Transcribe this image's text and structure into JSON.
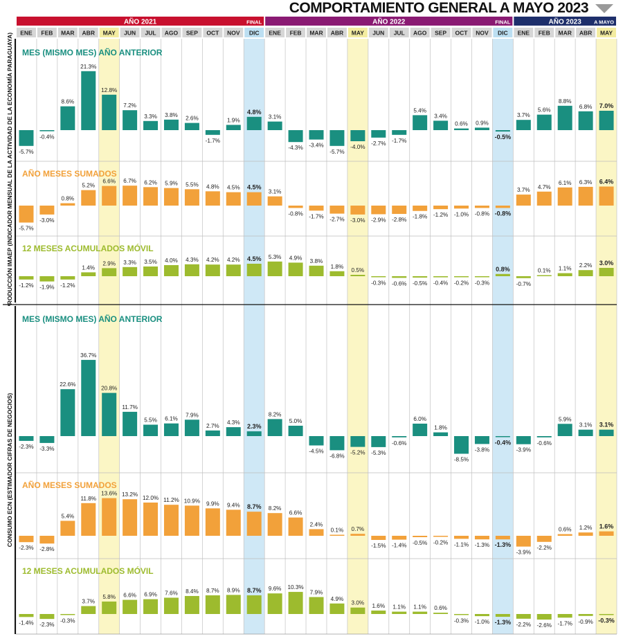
{
  "title": "COMPORTAMIENTO GENERAL A MAYO 2023",
  "colors": {
    "teal": "#1a8f80",
    "orange": "#f2a13a",
    "green": "#9dbb2e",
    "red": "#c8102e",
    "purple": "#8a1a73",
    "navy": "#1e2f6b",
    "highlight_blue": "#cfe8f6",
    "highlight_yellow": "#fbf6c5"
  },
  "years": [
    {
      "label": "AÑO 2021",
      "tag": "FINAL"
    },
    {
      "label": "AÑO 2022",
      "tag": "FINAL"
    },
    {
      "label": "AÑO 2023",
      "tag": "A MAYO"
    }
  ],
  "months": [
    "ENE",
    "FEB",
    "MAR",
    "ABR",
    "MAY",
    "JUN",
    "JUL",
    "AGO",
    "SEP",
    "OCT",
    "NOV",
    "DIC",
    "ENE",
    "FEB",
    "MAR",
    "ABR",
    "MAY",
    "JUN",
    "JUL",
    "AGO",
    "SEP",
    "OCT",
    "NOV",
    "DIC",
    "ENE",
    "FEB",
    "MAR",
    "ABR",
    "MAY"
  ],
  "section_labels": [
    "PRODUCCIÓN IMAEP (INDICADOR MENSUAL DE LA ACTIVIDAD DE LA ECONOMÍA PARAGUAYA)",
    "CONSUMO ECN (ESTIMADOR CIFRAS DE NEGOCIOS)"
  ],
  "chart_data": [
    {
      "type": "bar",
      "section": "PRODUCCIÓN IMAEP",
      "title": "MES (MISMO MES) AÑO ANTERIOR",
      "unit": "%",
      "values": [
        -5.7,
        -0.4,
        8.6,
        21.3,
        12.8,
        7.2,
        3.3,
        3.8,
        2.6,
        -1.7,
        1.9,
        4.8,
        3.1,
        -4.3,
        -3.4,
        -5.7,
        -4.0,
        -2.7,
        -1.7,
        5.4,
        3.4,
        0.6,
        0.9,
        -0.5,
        3.7,
        5.6,
        8.8,
        6.8,
        7.0
      ]
    },
    {
      "type": "bar",
      "section": "PRODUCCIÓN IMAEP",
      "title": "AÑO MESES SUMADOS",
      "unit": "%",
      "values": [
        -5.7,
        -3.0,
        0.8,
        5.2,
        6.6,
        6.7,
        6.2,
        5.9,
        5.5,
        4.8,
        4.5,
        4.5,
        3.1,
        -0.8,
        -1.7,
        -2.7,
        -3.0,
        -2.9,
        -2.8,
        -1.8,
        -1.2,
        -1.0,
        -0.8,
        -0.8,
        3.7,
        4.7,
        6.1,
        6.3,
        6.4
      ]
    },
    {
      "type": "bar",
      "section": "PRODUCCIÓN IMAEP",
      "title": "12 MESES ACUMULADOS MÓVIL",
      "unit": "%",
      "values": [
        -1.2,
        -1.9,
        -1.2,
        1.4,
        2.9,
        3.3,
        3.5,
        4.0,
        4.3,
        4.2,
        4.2,
        4.5,
        5.3,
        4.9,
        3.8,
        1.8,
        0.5,
        -0.3,
        -0.6,
        -0.5,
        -0.4,
        -0.2,
        -0.3,
        0.8,
        -0.7,
        0.1,
        1.1,
        2.2,
        3.0
      ]
    },
    {
      "type": "bar",
      "section": "CONSUMO ECN",
      "title": "MES (MISMO MES) AÑO ANTERIOR",
      "unit": "%",
      "values": [
        -2.3,
        -3.3,
        22.6,
        36.7,
        20.8,
        11.7,
        5.5,
        6.1,
        7.9,
        2.7,
        4.3,
        2.3,
        8.2,
        5.0,
        -4.5,
        -6.8,
        -5.2,
        -5.3,
        -0.6,
        6.0,
        1.8,
        -8.5,
        -3.8,
        -0.4,
        -3.9,
        -0.6,
        5.9,
        3.1,
        3.1
      ]
    },
    {
      "type": "bar",
      "section": "CONSUMO ECN",
      "title": "AÑO MESES SUMADOS",
      "unit": "%",
      "values": [
        -2.3,
        -2.8,
        5.4,
        11.8,
        13.6,
        13.2,
        12.0,
        11.2,
        10.9,
        9.9,
        9.4,
        8.7,
        8.2,
        6.6,
        2.4,
        0.1,
        0.7,
        -1.5,
        -1.4,
        -0.5,
        -0.2,
        -1.1,
        -1.3,
        -1.3,
        -3.9,
        -2.2,
        0.6,
        1.2,
        1.6
      ]
    },
    {
      "type": "bar",
      "section": "CONSUMO ECN",
      "title": "12 MESES ACUMULADOS MÓVIL",
      "unit": "%",
      "values": [
        -1.4,
        -2.3,
        -0.3,
        3.7,
        5.8,
        6.6,
        6.9,
        7.6,
        8.4,
        8.7,
        8.9,
        8.7,
        9.6,
        10.3,
        7.9,
        4.9,
        3.0,
        1.6,
        1.1,
        1.1,
        0.6,
        -0.3,
        -1.0,
        -1.3,
        -2.2,
        -2.6,
        -1.7,
        -0.9,
        -0.3
      ]
    }
  ]
}
